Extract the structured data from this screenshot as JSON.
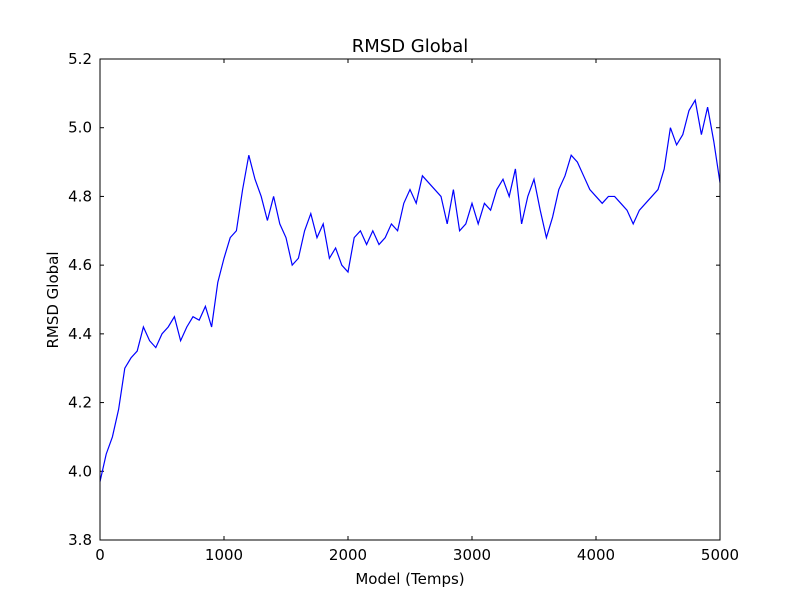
{
  "chart_data": {
    "type": "line",
    "title": "RMSD Global",
    "xlabel": "Model (Temps)",
    "ylabel": "RMSD Global",
    "x": [
      0,
      50,
      100,
      150,
      200,
      250,
      300,
      350,
      400,
      450,
      500,
      550,
      600,
      650,
      700,
      750,
      800,
      850,
      900,
      950,
      1000,
      1050,
      1100,
      1150,
      1200,
      1250,
      1300,
      1350,
      1400,
      1450,
      1500,
      1550,
      1600,
      1650,
      1700,
      1750,
      1800,
      1850,
      1900,
      1950,
      2000,
      2050,
      2100,
      2150,
      2200,
      2250,
      2300,
      2350,
      2400,
      2450,
      2500,
      2550,
      2600,
      2650,
      2700,
      2750,
      2800,
      2850,
      2900,
      2950,
      3000,
      3050,
      3100,
      3150,
      3200,
      3250,
      3300,
      3350,
      3400,
      3450,
      3500,
      3550,
      3600,
      3650,
      3700,
      3750,
      3800,
      3850,
      3900,
      3950,
      4000,
      4050,
      4100,
      4150,
      4200,
      4250,
      4300,
      4350,
      4400,
      4450,
      4500,
      4550,
      4600,
      4650,
      4700,
      4750,
      4800,
      4850,
      4900,
      4950,
      5000
    ],
    "series": [
      {
        "name": "RMSD Global",
        "color": "#0000ff",
        "values": [
          3.97,
          4.05,
          4.1,
          4.18,
          4.3,
          4.33,
          4.35,
          4.42,
          4.38,
          4.36,
          4.4,
          4.42,
          4.45,
          4.38,
          4.42,
          4.45,
          4.44,
          4.48,
          4.42,
          4.55,
          4.62,
          4.68,
          4.7,
          4.82,
          4.92,
          4.85,
          4.8,
          4.73,
          4.8,
          4.72,
          4.68,
          4.6,
          4.62,
          4.7,
          4.75,
          4.68,
          4.72,
          4.62,
          4.65,
          4.6,
          4.58,
          4.68,
          4.7,
          4.66,
          4.7,
          4.66,
          4.68,
          4.72,
          4.7,
          4.78,
          4.82,
          4.78,
          4.86,
          4.84,
          4.82,
          4.8,
          4.72,
          4.82,
          4.7,
          4.72,
          4.78,
          4.72,
          4.78,
          4.76,
          4.82,
          4.85,
          4.8,
          4.88,
          4.72,
          4.8,
          4.85,
          4.76,
          4.68,
          4.74,
          4.82,
          4.86,
          4.92,
          4.9,
          4.86,
          4.82,
          4.8,
          4.78,
          4.8,
          4.8,
          4.78,
          4.76,
          4.72,
          4.76,
          4.78,
          4.8,
          4.82,
          4.88,
          5.0,
          4.95,
          4.98,
          5.05,
          5.08,
          4.98,
          5.06,
          4.96,
          4.84
        ]
      }
    ],
    "xlim": [
      0,
      5000
    ],
    "xticks": [
      0,
      1000,
      2000,
      3000,
      4000,
      5000
    ],
    "ylim": [
      3.8,
      5.2
    ],
    "yticks": [
      3.8,
      {
        "value": 4,
        "label": "4.0"
      },
      4.2,
      4.4,
      4.6,
      4.8,
      {
        "value": 5,
        "label": "5.0"
      },
      5.2
    ]
  }
}
